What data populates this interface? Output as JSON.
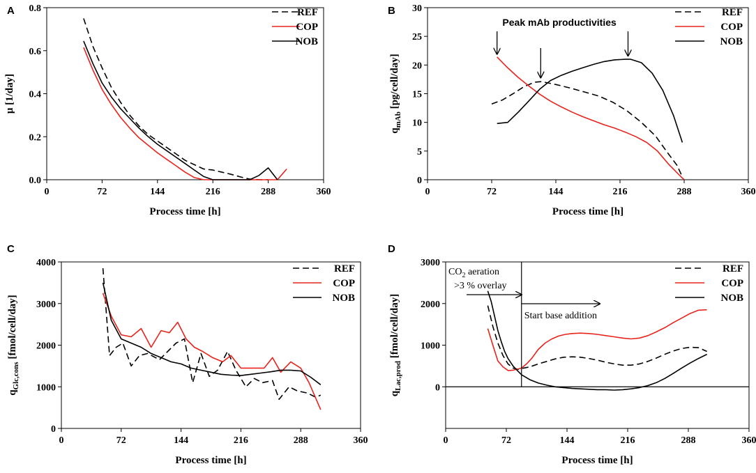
{
  "colors": {
    "REF": "#000000",
    "COP": "#e8231c",
    "NOB": "#000000"
  },
  "chart_data": [
    {
      "panel": "A",
      "type": "line",
      "xlabel": "Process time [h]",
      "ylabel": "μ [1/day]",
      "xlim": [
        0,
        360
      ],
      "ylim": [
        0,
        0.8
      ],
      "xticks": [
        0,
        72,
        144,
        216,
        288,
        360
      ],
      "xtick_labels": [
        "0",
        "72",
        "144",
        "216",
        "288",
        "360"
      ],
      "yticks": [
        0,
        0.2,
        0.4,
        0.6,
        0.8
      ],
      "ytick_labels": [
        "0.0",
        "0.2",
        "0.4",
        "0.6",
        "0.8"
      ],
      "legend": [
        "REF",
        "COP",
        "NOB"
      ],
      "series": [
        {
          "name": "REF",
          "style": "dashed",
          "x": [
            48,
            60,
            72,
            84,
            96,
            108,
            120,
            132,
            144,
            156,
            168,
            180,
            192,
            204,
            216,
            228,
            240,
            252,
            264,
            276,
            288
          ],
          "y": [
            0.75,
            0.62,
            0.52,
            0.43,
            0.36,
            0.3,
            0.25,
            0.21,
            0.18,
            0.15,
            0.12,
            0.09,
            0.07,
            0.05,
            0.045,
            0.035,
            0.025,
            0.013,
            0.003,
            0.0,
            0.0
          ]
        },
        {
          "name": "COP",
          "style": "solid",
          "x": [
            48,
            60,
            72,
            84,
            96,
            108,
            120,
            132,
            144,
            156,
            168,
            180,
            192,
            204,
            216,
            288,
            300,
            312
          ],
          "y": [
            0.615,
            0.51,
            0.42,
            0.35,
            0.29,
            0.24,
            0.195,
            0.16,
            0.125,
            0.095,
            0.065,
            0.035,
            0.01,
            0.0,
            0.0,
            0.0,
            0.0,
            0.05
          ]
        },
        {
          "name": "NOB",
          "style": "solid",
          "x": [
            48,
            60,
            72,
            84,
            96,
            108,
            120,
            132,
            144,
            156,
            168,
            180,
            192,
            204,
            216,
            264,
            276,
            288,
            300
          ],
          "y": [
            0.645,
            0.54,
            0.45,
            0.385,
            0.33,
            0.285,
            0.24,
            0.2,
            0.165,
            0.135,
            0.105,
            0.075,
            0.045,
            0.015,
            0.0,
            0.0,
            0.02,
            0.055,
            0.0
          ]
        }
      ]
    },
    {
      "panel": "B",
      "type": "line",
      "xlabel": "Process time [h]",
      "ylabel": "qmAb [pg/cell/day]",
      "ylabel_main": "q",
      "ylabel_sub": "mAb",
      "ylabel_rest": " [pg/cell/day]",
      "xlim": [
        0,
        360
      ],
      "ylim": [
        0,
        30
      ],
      "xticks": [
        0,
        72,
        144,
        216,
        288,
        360
      ],
      "xtick_labels": [
        "0",
        "72",
        "144",
        "216",
        "288",
        "360"
      ],
      "yticks": [
        0,
        5,
        10,
        15,
        20,
        25,
        30
      ],
      "ytick_labels": [
        "0",
        "5",
        "10",
        "15",
        "20",
        "25",
        "30"
      ],
      "legend": [
        "REF",
        "COP",
        "NOB"
      ],
      "annotation": "Peak mAb productivities",
      "arrows_x": [
        78,
        127,
        225
      ],
      "series": [
        {
          "name": "REF",
          "style": "dashed",
          "x": [
            72,
            84,
            96,
            108,
            120,
            128,
            144,
            160,
            176,
            192,
            208,
            224,
            240,
            256,
            268,
            280,
            286
          ],
          "y": [
            13.2,
            13.9,
            15.0,
            16.2,
            17.0,
            17.1,
            16.6,
            16.0,
            15.3,
            14.6,
            13.5,
            12.0,
            10.0,
            7.6,
            5.0,
            2.5,
            0.5
          ]
        },
        {
          "name": "COP",
          "style": "solid",
          "x": [
            78,
            90,
            102,
            114,
            126,
            138,
            150,
            162,
            174,
            186,
            198,
            210,
            222,
            234,
            246,
            258,
            270,
            282,
            288
          ],
          "y": [
            21.4,
            19.5,
            17.8,
            16.3,
            14.9,
            13.7,
            12.7,
            11.8,
            11.0,
            10.3,
            9.6,
            9.0,
            8.3,
            7.5,
            6.5,
            5.0,
            2.8,
            0.9,
            0.0
          ]
        },
        {
          "name": "NOB",
          "style": "solid",
          "x": [
            78,
            90,
            102,
            114,
            126,
            138,
            150,
            162,
            174,
            186,
            198,
            210,
            222,
            228,
            240,
            252,
            264,
            276,
            286
          ],
          "y": [
            9.8,
            10.0,
            11.8,
            13.8,
            15.8,
            17.3,
            18.2,
            18.9,
            19.5,
            20.1,
            20.6,
            20.9,
            21.0,
            21.0,
            20.4,
            18.6,
            15.6,
            11.2,
            6.5
          ]
        }
      ]
    },
    {
      "panel": "C",
      "type": "line",
      "xlabel": "Process time [h]",
      "ylabel": "qGlc,cons [fmol/cell/day]",
      "ylabel_main": "q",
      "ylabel_sub": "Glc,cons",
      "ylabel_rest": " [fmol/cell/day]",
      "xlim": [
        0,
        360
      ],
      "ylim": [
        0,
        4000
      ],
      "xticks": [
        0,
        72,
        144,
        216,
        288,
        360
      ],
      "xtick_labels": [
        "0",
        "72",
        "144",
        "216",
        "288",
        "360"
      ],
      "yticks": [
        0,
        1000,
        2000,
        3000,
        4000
      ],
      "ytick_labels": [
        "0",
        "1000",
        "2000",
        "3000",
        "4000"
      ],
      "legend": [
        "REF",
        "COP",
        "NOB"
      ],
      "series": [
        {
          "name": "REF",
          "style": "dashed",
          "x": [
            50,
            58,
            66,
            74,
            84,
            94,
            104,
            118,
            128,
            138,
            148,
            158,
            168,
            178,
            188,
            200,
            210,
            222,
            232,
            242,
            254,
            262,
            274,
            284,
            296,
            306,
            312
          ],
          "y": [
            3850,
            1750,
            1950,
            2050,
            1500,
            1750,
            1800,
            1650,
            1850,
            2050,
            2150,
            1100,
            1800,
            1250,
            1400,
            1850,
            1400,
            1000,
            1200,
            1100,
            1150,
            700,
            1000,
            900,
            850,
            750,
            800
          ]
        },
        {
          "name": "COP",
          "style": "solid",
          "x": [
            50,
            60,
            72,
            84,
            96,
            108,
            120,
            130,
            140,
            150,
            160,
            170,
            182,
            194,
            204,
            216,
            230,
            244,
            254,
            264,
            276,
            288,
            298,
            312
          ],
          "y": [
            3250,
            2700,
            2250,
            2200,
            2400,
            1950,
            2350,
            2300,
            2550,
            2150,
            1950,
            1850,
            1700,
            1600,
            1750,
            1450,
            1450,
            1450,
            1700,
            1350,
            1600,
            1450,
            1100,
            450
          ]
        },
        {
          "name": "NOB",
          "style": "solid",
          "x": [
            50,
            60,
            72,
            84,
            96,
            108,
            120,
            132,
            144,
            156,
            168,
            180,
            192,
            204,
            216,
            228,
            240,
            252,
            264,
            276,
            288,
            300,
            312
          ],
          "y": [
            3500,
            2600,
            2150,
            2050,
            1950,
            1800,
            1700,
            1600,
            1550,
            1450,
            1400,
            1350,
            1300,
            1280,
            1270,
            1300,
            1330,
            1360,
            1400,
            1400,
            1380,
            1230,
            1050
          ]
        }
      ]
    },
    {
      "panel": "D",
      "type": "line",
      "xlabel": "Process time [h]",
      "ylabel": "qLac,prod [fmol/cell/day]",
      "ylabel_main": "q",
      "ylabel_sub": "Lac,prod",
      "ylabel_rest": " [fmol/cell/day]",
      "xlim": [
        0,
        360
      ],
      "ylim": [
        -1000,
        3000
      ],
      "xticks": [
        0,
        72,
        144,
        216,
        288,
        360
      ],
      "xtick_labels": [
        "0",
        "72",
        "144",
        "216",
        "288",
        "360"
      ],
      "yticks": [
        0,
        1000,
        2000,
        3000
      ],
      "ytick_labels": [
        "0",
        "1000",
        "2000",
        "3000"
      ],
      "legend": [
        "REF",
        "COP",
        "NOB"
      ],
      "vline_x": 90,
      "annotation_co2_main": "CO",
      "annotation_co2_sub": "2",
      "annotation_co2_rest": " aeration",
      "annotation_overlay": ">3 % overlay",
      "annotation_base": "Start base addition",
      "series": [
        {
          "name": "REF",
          "style": "dashed",
          "x": [
            50,
            56,
            62,
            68,
            74,
            80,
            86,
            90,
            100,
            110,
            120,
            130,
            140,
            150,
            160,
            170,
            180,
            190,
            200,
            210,
            220,
            230,
            240,
            250,
            260,
            270,
            280,
            290,
            300,
            310
          ],
          "y": [
            1950,
            1450,
            1050,
            750,
            550,
            450,
            420,
            440,
            480,
            550,
            610,
            670,
            710,
            720,
            710,
            680,
            640,
            590,
            550,
            520,
            520,
            550,
            610,
            690,
            780,
            860,
            920,
            950,
            940,
            850
          ]
        },
        {
          "name": "COP",
          "style": "solid",
          "x": [
            50,
            56,
            62,
            68,
            74,
            80,
            86,
            90,
            96,
            102,
            110,
            118,
            126,
            134,
            142,
            150,
            160,
            170,
            180,
            190,
            200,
            210,
            220,
            230,
            240,
            250,
            260,
            270,
            280,
            290,
            300,
            310
          ],
          "y": [
            1400,
            1000,
            620,
            480,
            390,
            400,
            430,
            450,
            550,
            680,
            900,
            1050,
            1150,
            1220,
            1260,
            1280,
            1290,
            1280,
            1260,
            1230,
            1200,
            1170,
            1150,
            1170,
            1230,
            1320,
            1420,
            1540,
            1650,
            1760,
            1840,
            1850
          ]
        },
        {
          "name": "NOB",
          "style": "solid",
          "x": [
            50,
            54,
            58,
            62,
            66,
            70,
            74,
            80,
            86,
            90,
            100,
            110,
            120,
            130,
            140,
            150,
            160,
            170,
            180,
            190,
            200,
            210,
            220,
            230,
            240,
            250,
            260,
            270,
            280,
            290,
            300,
            310
          ],
          "y": [
            2300,
            2050,
            1700,
            1350,
            1080,
            850,
            680,
            500,
            370,
            290,
            170,
            90,
            40,
            0,
            -20,
            -40,
            -50,
            -60,
            -70,
            -70,
            -80,
            -70,
            -50,
            -20,
            30,
            100,
            200,
            320,
            450,
            570,
            680,
            780
          ]
        }
      ]
    }
  ]
}
